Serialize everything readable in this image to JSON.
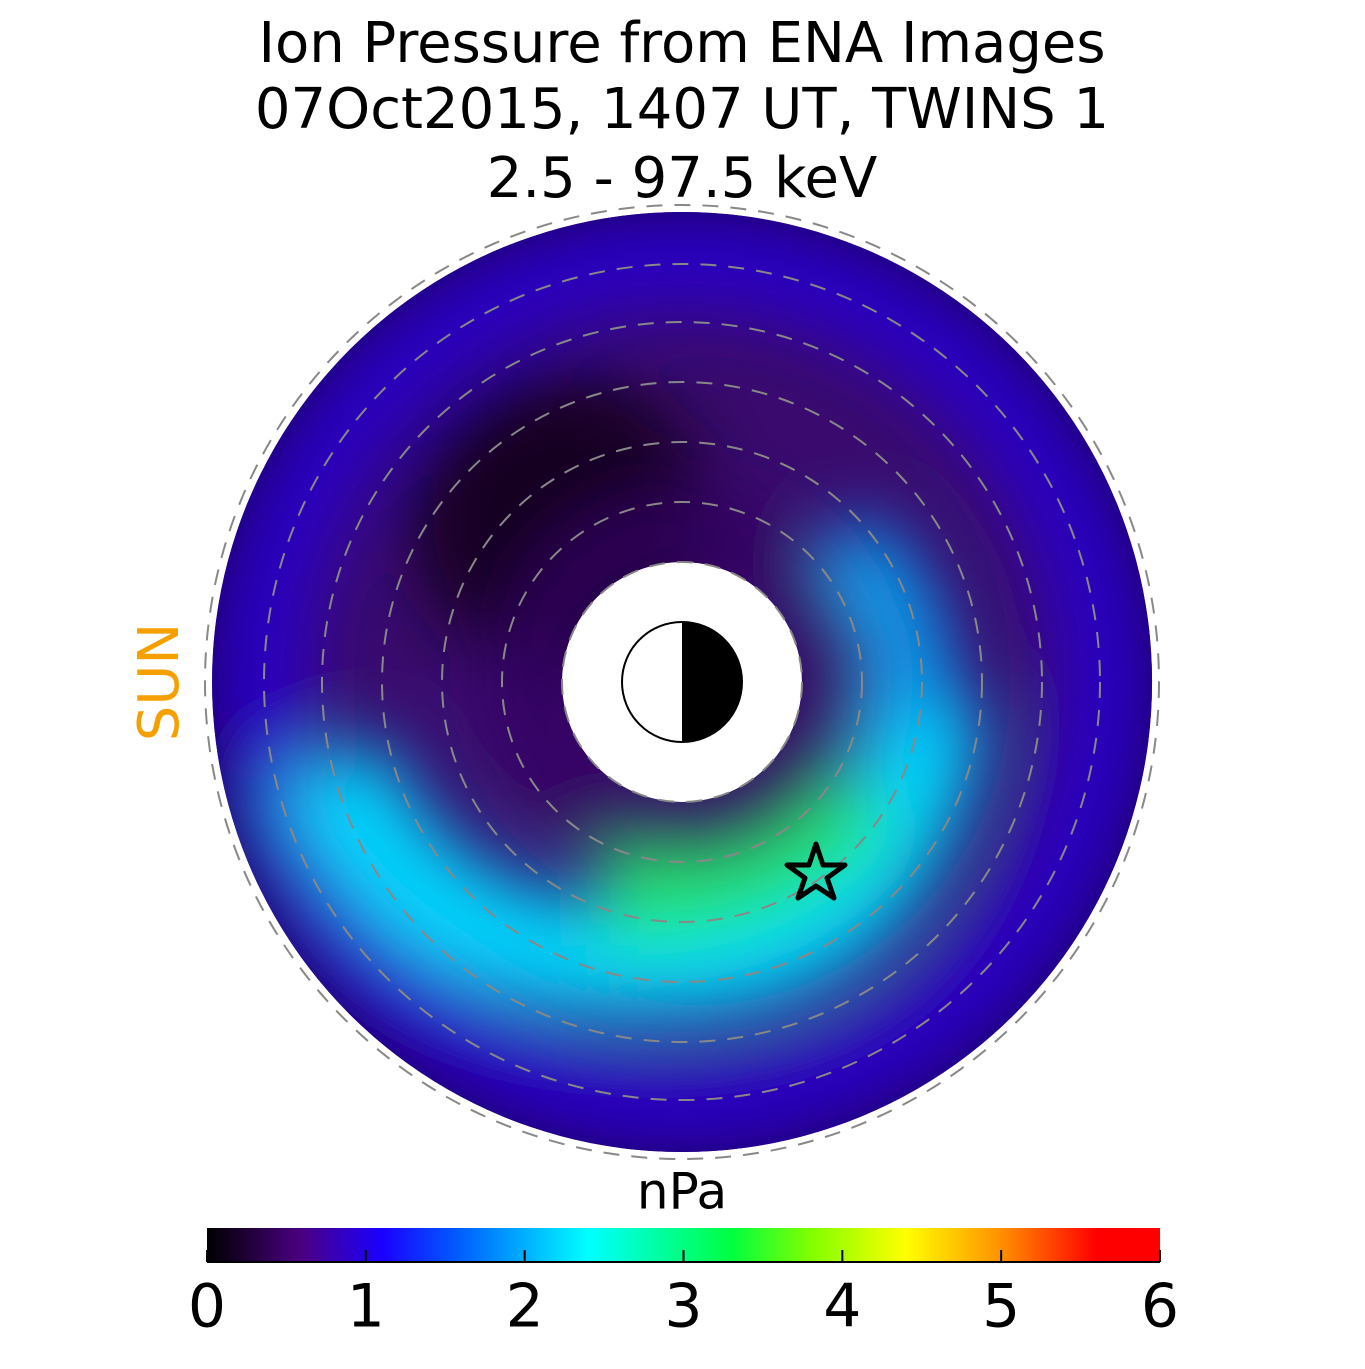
{
  "chart_data": {
    "type": "polar-map",
    "title": [
      "Ion Pressure from  ENA Images",
      "07Oct2015, 1407 UT,  TWINS 1",
      "2.5 - 97.5 keV"
    ],
    "sun_label": "SUN",
    "colorbar": {
      "label": "nPa",
      "clim": [
        0,
        6
      ],
      "ticks": [
        0,
        1,
        2,
        3,
        4,
        5,
        6
      ],
      "colormap": [
        [
          0,
          "#000000"
        ],
        [
          0.6,
          "#4b0082"
        ],
        [
          1.1,
          "#1a00ff"
        ],
        [
          1.6,
          "#0060ff"
        ],
        [
          2.4,
          "#00ffff"
        ],
        [
          3.3,
          "#00ff40"
        ],
        [
          3.8,
          "#80ff00"
        ],
        [
          4.4,
          "#ffff00"
        ],
        [
          5,
          "#ff9000"
        ],
        [
          5.6,
          "#ff0000"
        ],
        [
          6,
          "#ff0000"
        ]
      ]
    }
  }
}
